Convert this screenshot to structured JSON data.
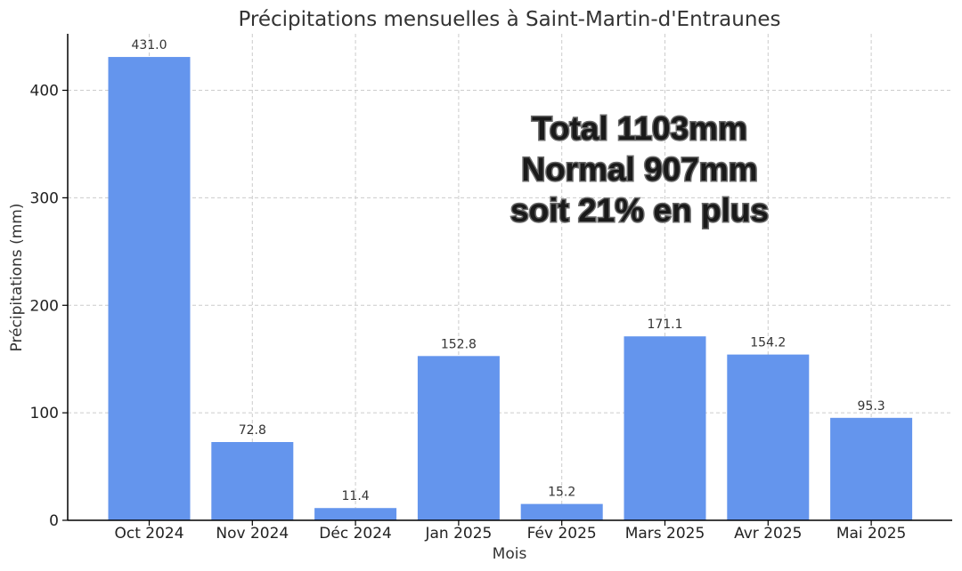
{
  "chart_data": {
    "type": "bar",
    "title": "Précipitations mensuelles à Saint-Martin-d'Entraunes",
    "xlabel": "Mois",
    "ylabel": "Précipitations (mm)",
    "categories": [
      "Oct 2024",
      "Nov 2024",
      "Déc 2024",
      "Jan 2025",
      "Fév 2025",
      "Mars 2025",
      "Avr 2025",
      "Mai 2025"
    ],
    "values": [
      431.0,
      72.8,
      11.4,
      152.8,
      15.2,
      171.1,
      154.2,
      95.3
    ],
    "value_labels": [
      "431.0",
      "72.8",
      "11.4",
      "152.8",
      "15.2",
      "171.1",
      "154.2",
      "95.3"
    ],
    "ylim": [
      0,
      452.55
    ],
    "yticks": [
      0,
      100,
      200,
      300,
      400
    ],
    "grid": true,
    "bar_color": "#6495ed",
    "annotations": [
      "Total 1103mm",
      "Normal 907mm",
      "soit 21% en plus"
    ]
  }
}
